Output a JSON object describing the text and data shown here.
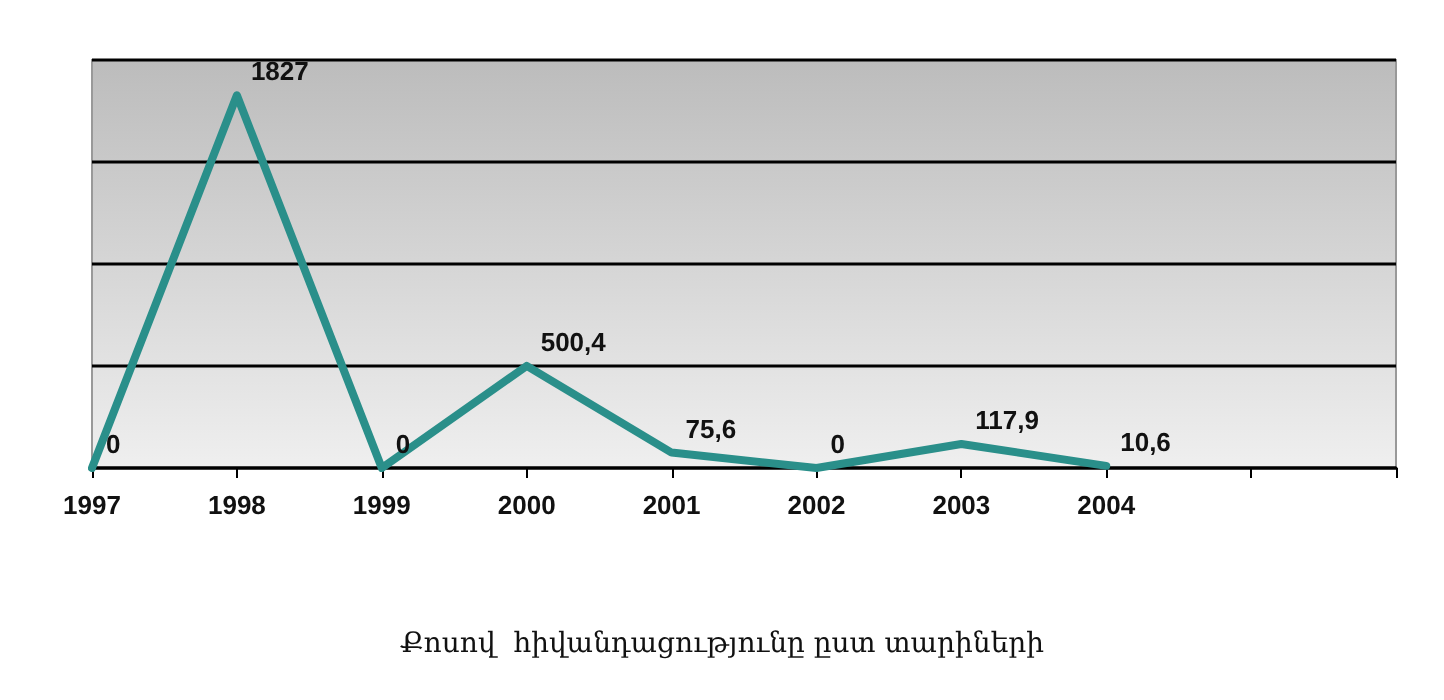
{
  "chart_data": {
    "type": "line",
    "title": "Քոսով  հիվանդացությունը ըստ տարիների",
    "categories": [
      "1997",
      "1998",
      "1999",
      "2000",
      "2001",
      "2002",
      "2003",
      "2004",
      null,
      null
    ],
    "series": [
      {
        "color": "#2a8f8a",
        "values": [
          0,
          1827,
          0,
          500.4,
          75.6,
          0,
          117.9,
          10.6,
          null,
          null
        ],
        "value_labels": [
          "0",
          "1827",
          "0",
          "500,4",
          "75,6",
          "0",
          "117,9",
          "10,6",
          null,
          null
        ]
      }
    ],
    "ylim": [
      0,
      2000
    ],
    "yticks": [
      {
        "value": 0,
        "label": null
      },
      {
        "value": 500,
        "label": null
      },
      {
        "value": 1000,
        "label": null
      },
      {
        "value": 1500,
        "label": null
      },
      {
        "value": 2000,
        "label": null
      }
    ],
    "grid": "y",
    "marker": "none",
    "line_style": "solid",
    "tick_labels": "x"
  }
}
